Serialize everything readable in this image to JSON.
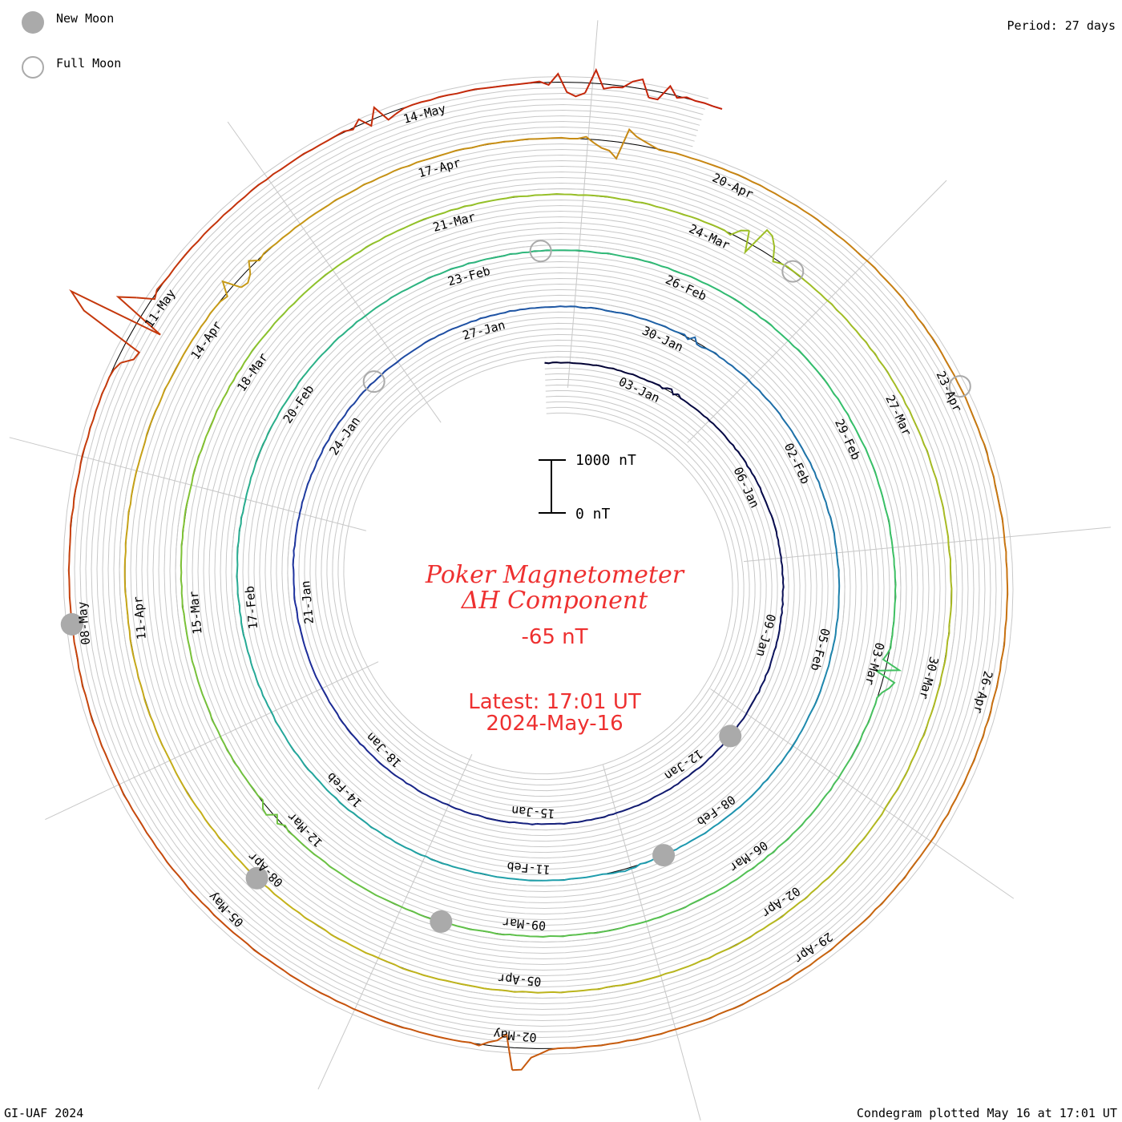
{
  "legend": {
    "new_moon_label": "New Moon",
    "full_moon_label": "Full Moon",
    "new_moon_color": "#aaaaaa",
    "full_moon_color": "#aaaaaa"
  },
  "header": {
    "period": "Period: 27 days"
  },
  "footer": {
    "credit": "GI-UAF 2024",
    "plotted": "Condegram plotted May 16 at 17:01 UT"
  },
  "center": {
    "title_1": "Poker Magnetometer",
    "title_2": "ΔH Component",
    "value": "-65 nT",
    "latest_1": "Latest: 17:01 UT",
    "latest_2": "2024-May-16",
    "scale_top": "1000 nT",
    "scale_bottom": "0 nT",
    "text_color": "#ee3030"
  },
  "chart_data": {
    "type": "line",
    "layout": "spiral condegram",
    "period_days": 27,
    "start_date": "2024-01-01",
    "end": "2024-05-16 17:01 UT",
    "y_unit": "nT",
    "scale_bar_nT": [
      0,
      1000
    ],
    "date_labels": [
      "03-Jan",
      "06-Jan",
      "09-Jan",
      "12-Jan",
      "15-Jan",
      "18-Jan",
      "21-Jan",
      "24-Jan",
      "27-Jan",
      "30-Jan",
      "02-Feb",
      "05-Feb",
      "08-Feb",
      "11-Feb",
      "14-Feb",
      "17-Feb",
      "20-Feb",
      "23-Feb",
      "26-Feb",
      "29-Feb",
      "03-Mar",
      "06-Mar",
      "09-Mar",
      "12-Mar",
      "15-Mar",
      "18-Mar",
      "21-Mar",
      "24-Mar",
      "27-Mar",
      "30-Mar",
      "02-Apr",
      "05-Apr",
      "08-Apr",
      "11-Apr",
      "14-Apr",
      "17-Apr",
      "20-Apr",
      "23-Apr",
      "26-Apr",
      "29-Apr",
      "02-May",
      "05-May",
      "08-May",
      "11-May",
      "14-May"
    ],
    "new_moons": [
      "2024-01-11",
      "2024-02-09",
      "2024-03-10",
      "2024-04-08",
      "2024-05-08"
    ],
    "full_moons": [
      "2024-01-25",
      "2024-02-24",
      "2024-03-25",
      "2024-04-23"
    ],
    "series_colors": [
      "#000030",
      "#1f2f9e",
      "#1e9cb0",
      "#34c06a",
      "#8fc22a",
      "#c5b21a",
      "#c86a0f",
      "#c4210a"
    ],
    "rotations": [
      {
        "start": "2024-01-01",
        "color": "#000030",
        "disturbances": [
          {
            "day": 2.6,
            "nT": 60
          }
        ]
      },
      {
        "start": "2024-01-28",
        "color": "#1f2f9e",
        "disturbances": [
          {
            "day": 2.5,
            "nT": 80
          },
          {
            "day": 12.6,
            "nT": 40
          }
        ]
      },
      {
        "start": "2024-02-24",
        "color": "#1e9cb0",
        "disturbances": [
          {
            "day": 8.1,
            "nT": 300
          },
          {
            "day": 17.4,
            "nT": 120
          }
        ]
      },
      {
        "start": "2024-03-22",
        "color": "#34c06a",
        "disturbances": [
          {
            "day": 2.5,
            "nT": 500
          },
          {
            "day": 23.7,
            "nT": 300
          }
        ]
      },
      {
        "start": "2024-04-18",
        "color": "#c5b21a",
        "disturbances": [
          {
            "day": 0.8,
            "nT": 500
          },
          {
            "day": 14.0,
            "nT": 450
          },
          {
            "day": 25.6,
            "nT": 200
          }
        ]
      },
      {
        "start": "2024-05-15",
        "color": "#c4210a",
        "disturbances": [
          {
            "day": 0.4,
            "nT": 450
          },
          {
            "day": 1.0,
            "nT": 300
          }
        ]
      },
      {
        "start": "2024-05-10",
        "color": "#c4210a",
        "disturbances": [
          {
            "day": 0.7,
            "nT": 1400
          }
        ]
      }
    ]
  }
}
